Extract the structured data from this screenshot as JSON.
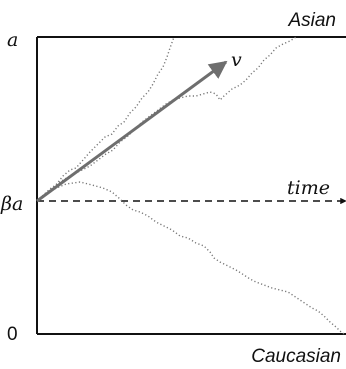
{
  "labels": {
    "top_boundary": "Asian",
    "bottom_boundary": "Caucasian",
    "y_top": "a",
    "y_mid": "βa",
    "y_zero": "0",
    "drift_vector": "v",
    "time_axis": "time"
  },
  "colors": {
    "axes": "#111111",
    "drift_arrow": "#6e6e6e",
    "paths": "#777777",
    "time_line": "#111111"
  }
}
